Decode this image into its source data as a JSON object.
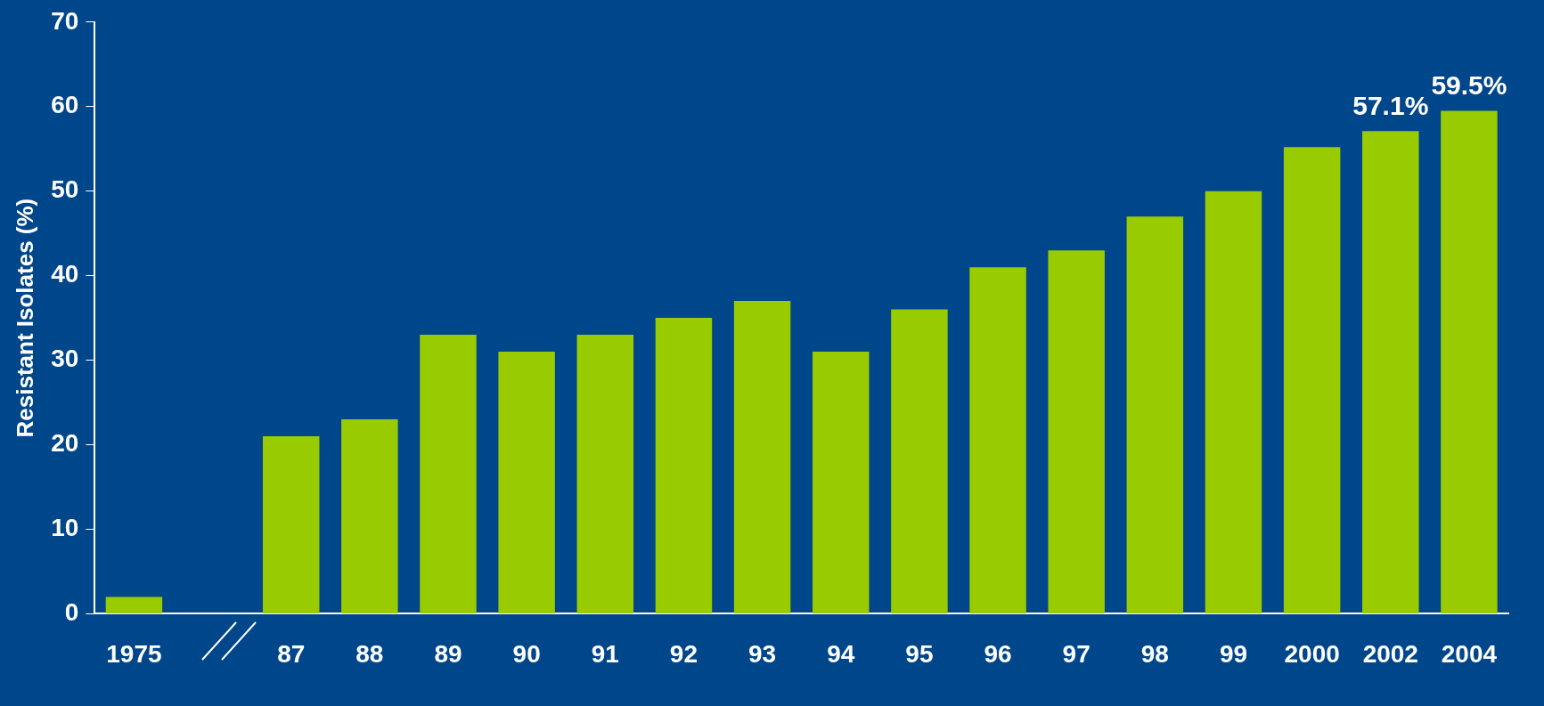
{
  "chart_data": {
    "type": "bar",
    "ylabel": "Resistant Isolates (%)",
    "categories": [
      "1975",
      null,
      "87",
      "88",
      "89",
      "90",
      "91",
      "92",
      "93",
      "94",
      "95",
      "96",
      "97",
      "98",
      "99",
      "2000",
      "2002",
      "2004"
    ],
    "values": [
      2,
      null,
      21,
      23,
      33,
      31,
      33,
      35,
      37,
      31,
      36,
      41,
      43,
      47,
      50,
      55.2,
      57.1,
      59.5
    ],
    "value_labels": [
      null,
      null,
      null,
      null,
      null,
      null,
      null,
      null,
      null,
      null,
      null,
      null,
      null,
      null,
      null,
      null,
      "57.1%",
      "59.5%"
    ],
    "color": "#99cc00",
    "ylim": [
      0,
      70
    ],
    "yticks": [
      0,
      10,
      20,
      30,
      40,
      50,
      60,
      70
    ],
    "grid": false,
    "legend": false
  }
}
